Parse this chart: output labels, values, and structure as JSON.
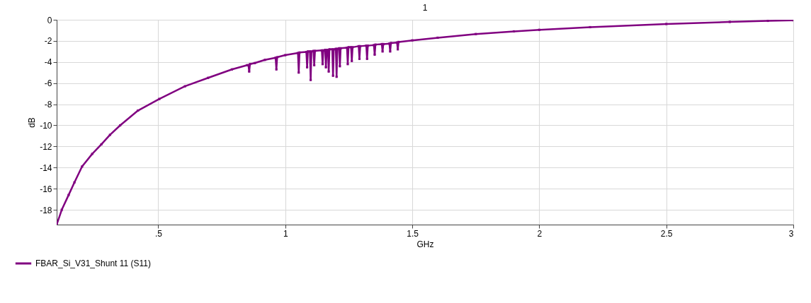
{
  "chart_data": {
    "type": "line",
    "title": "1",
    "xlabel": "GHz",
    "ylabel": "dB",
    "xlim": [
      0.1,
      3
    ],
    "xticks": [
      {
        "value": 0.5,
        "label": ".5"
      },
      1,
      1.5,
      2,
      2.5,
      3
    ],
    "ylim": [
      -19.4,
      0
    ],
    "yticks": [
      0,
      -2,
      -4,
      -6,
      -8,
      -10,
      -12,
      -14,
      -16,
      -18
    ],
    "grid": true,
    "legend": "bottom left",
    "marker": "square",
    "line_style": "solid",
    "x": [
      0.1,
      0.12,
      0.147,
      0.17,
      0.2,
      0.24,
      0.276,
      0.31,
      0.35,
      0.42,
      0.504,
      0.605,
      0.696,
      0.79,
      0.85,
      0.855,
      0.858,
      0.861,
      0.88,
      0.92,
      0.962,
      0.965,
      0.968,
      1.0,
      1.05,
      1.053,
      1.056,
      1.083,
      1.086,
      1.089,
      1.097,
      1.1,
      1.103,
      1.111,
      1.114,
      1.117,
      1.144,
      1.147,
      1.15,
      1.157,
      1.16,
      1.163,
      1.168,
      1.171,
      1.174,
      1.185,
      1.188,
      1.191,
      1.199,
      1.202,
      1.205,
      1.212,
      1.215,
      1.218,
      1.243,
      1.246,
      1.249,
      1.259,
      1.262,
      1.265,
      1.289,
      1.292,
      1.295,
      1.319,
      1.322,
      1.325,
      1.349,
      1.352,
      1.355,
      1.38,
      1.383,
      1.386,
      1.41,
      1.413,
      1.416,
      1.44,
      1.443,
      1.446,
      1.5,
      1.6,
      1.75,
      1.9,
      2.0,
      2.2,
      2.5,
      2.75,
      2.9,
      3.0
    ],
    "series": [
      {
        "name": "FBAR_Si_V31_Shunt 11 (S11)",
        "color": "#800080",
        "values": [
          -19.4,
          -18.0,
          -16.6,
          -15.4,
          -13.9,
          -12.7,
          -11.8,
          -10.9,
          -10.0,
          -8.6,
          -7.5,
          -6.3,
          -5.5,
          -4.7,
          -4.3,
          -4.3,
          -4.9,
          -4.2,
          -4.1,
          -3.8,
          -3.6,
          -4.7,
          -3.55,
          -3.35,
          -3.15,
          -5.0,
          -3.1,
          -3.05,
          -4.5,
          -3.0,
          -3.0,
          -5.7,
          -3.0,
          -2.95,
          -4.3,
          -2.95,
          -2.9,
          -4.2,
          -2.9,
          -2.85,
          -4.5,
          -2.85,
          -2.85,
          -4.9,
          -2.8,
          -2.8,
          -5.3,
          -2.8,
          -2.75,
          -5.4,
          -2.75,
          -2.7,
          -4.4,
          -2.7,
          -2.65,
          -4.2,
          -2.6,
          -2.6,
          -3.9,
          -2.6,
          -2.5,
          -3.7,
          -2.5,
          -2.45,
          -3.7,
          -2.45,
          -2.4,
          -3.3,
          -2.35,
          -2.3,
          -3.0,
          -2.3,
          -2.25,
          -3.0,
          -2.2,
          -2.15,
          -2.8,
          -2.1,
          -1.95,
          -1.7,
          -1.35,
          -1.1,
          -0.95,
          -0.7,
          -0.4,
          -0.2,
          -0.1,
          -0.05
        ]
      }
    ]
  }
}
